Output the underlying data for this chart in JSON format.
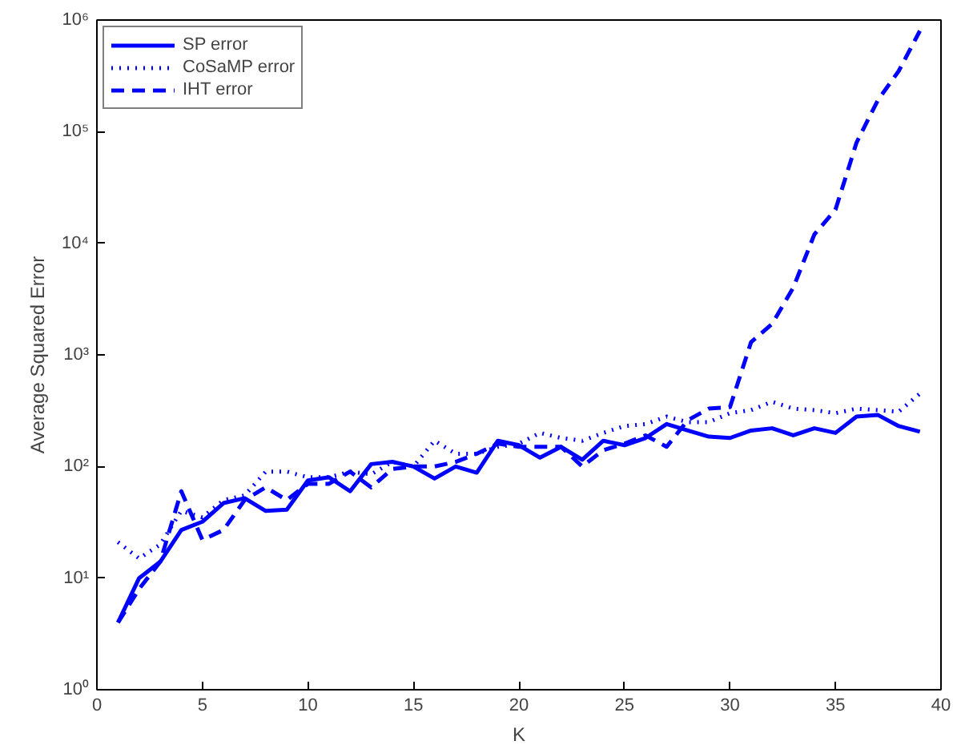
{
  "chart_data": {
    "type": "line",
    "xlabel": "K",
    "ylabel": "Average Squared Error",
    "x": [
      1,
      2,
      3,
      4,
      5,
      6,
      7,
      8,
      9,
      10,
      11,
      12,
      13,
      14,
      15,
      16,
      17,
      18,
      19,
      20,
      21,
      22,
      23,
      24,
      25,
      26,
      27,
      28,
      29,
      30,
      31,
      32,
      33,
      34,
      35,
      36,
      37,
      38,
      39
    ],
    "series": [
      {
        "name": "SP error",
        "color": "#0000ff",
        "line_style": "solid",
        "values": [
          4,
          10,
          14,
          27,
          32,
          47,
          52,
          40,
          41,
          75,
          80,
          60,
          105,
          110,
          100,
          78,
          100,
          88,
          170,
          155,
          120,
          150,
          115,
          170,
          155,
          180,
          240,
          210,
          185,
          180,
          210,
          220,
          190,
          220,
          200,
          280,
          290,
          230,
          205
        ]
      },
      {
        "name": "CoSaMP error",
        "color": "#0000ff",
        "line_style": "dotted",
        "values": [
          21,
          15,
          20,
          40,
          35,
          50,
          55,
          90,
          90,
          80,
          80,
          90,
          85,
          110,
          100,
          170,
          130,
          130,
          150,
          160,
          200,
          180,
          170,
          200,
          230,
          240,
          280,
          250,
          250,
          300,
          320,
          380,
          330,
          320,
          300,
          330,
          320,
          310,
          450
        ]
      },
      {
        "name": "IHT error",
        "color": "#0000ff",
        "line_style": "dashed",
        "values": [
          4,
          8,
          14,
          60,
          22,
          27,
          50,
          65,
          50,
          70,
          70,
          90,
          65,
          95,
          100,
          100,
          110,
          130,
          160,
          150,
          150,
          150,
          100,
          140,
          160,
          190,
          150,
          260,
          330,
          340,
          1300,
          1900,
          4000,
          12000,
          20000,
          80000,
          190000,
          350000,
          800000
        ]
      }
    ],
    "xlim": [
      0,
      40
    ],
    "xticks": [
      0,
      5,
      10,
      15,
      20,
      25,
      30,
      35,
      40
    ],
    "ylim": [
      1,
      1000000
    ],
    "log": true,
    "yticks": [
      {
        "value": 1,
        "label": "10⁰"
      },
      {
        "value": 10,
        "label": "10¹"
      },
      {
        "value": 100,
        "label": "10²"
      },
      {
        "value": 1000,
        "label": "10³"
      },
      {
        "value": 10000,
        "label": "10⁴"
      },
      {
        "value": 100000,
        "label": "10⁵"
      },
      {
        "value": 1000000,
        "label": "10⁶"
      }
    ],
    "grid": false,
    "legend": "top left"
  }
}
